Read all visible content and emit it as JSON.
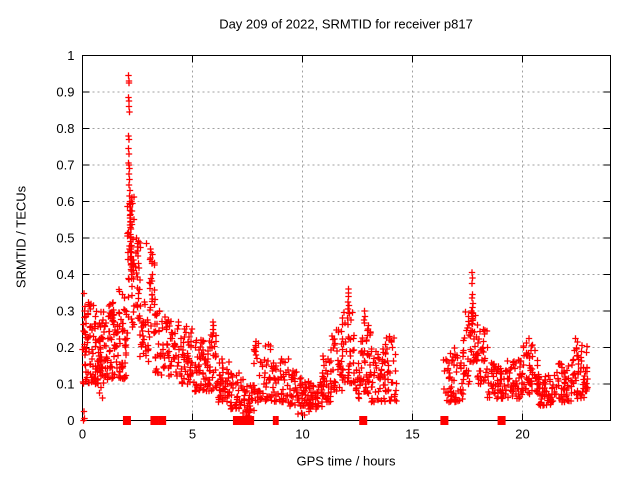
{
  "chart_data": {
    "type": "scatter",
    "title": "Day 209 of 2022, SRMTID for receiver p817",
    "xlabel": "GPS time / hours",
    "ylabel": "SRMTID / TECUs",
    "xlim": [
      0,
      24
    ],
    "ylim": [
      0,
      1
    ],
    "xticks": [
      0,
      5,
      10,
      15,
      20
    ],
    "xtick_labels": [
      "0",
      "5",
      "10",
      "15",
      "20"
    ],
    "yticks": [
      0,
      0.1,
      0.2,
      0.3,
      0.4,
      0.5,
      0.6,
      0.7,
      0.8,
      0.9,
      1
    ],
    "ytick_labels": [
      "0",
      "0.1",
      "0.2",
      "0.3",
      "0.4",
      "0.5",
      "0.6",
      "0.7",
      "0.8",
      "0.9",
      "1"
    ],
    "grid": "dashed",
    "grid_color": "#a0a0a0",
    "frame_color": "#000000",
    "legend": "none",
    "series": [
      {
        "name": "SRMTID",
        "marker": "plus",
        "color": "#ff0000"
      }
    ],
    "gap_intervals": [
      [
        14.35,
        16.4
      ]
    ],
    "seed": 42,
    "bins_format": [
      "x_start_h",
      "x_end_h",
      "y_min",
      "y_max",
      "count",
      "low_bias_exponent"
    ],
    "scatter_density_bins": [
      [
        0.0,
        0.5,
        0.1,
        0.35,
        60,
        1.3
      ],
      [
        0.5,
        1.1,
        0.1,
        0.3,
        70,
        1.4
      ],
      [
        1.1,
        1.6,
        0.11,
        0.33,
        55,
        1.4
      ],
      [
        1.6,
        2.05,
        0.11,
        0.36,
        50,
        1.2
      ],
      [
        2.05,
        2.35,
        0.25,
        0.62,
        45,
        1.0
      ],
      [
        2.3,
        2.65,
        0.28,
        0.5,
        30,
        1.1
      ],
      [
        2.6,
        3.0,
        0.16,
        0.35,
        30,
        1.2
      ],
      [
        3.0,
        3.3,
        0.22,
        0.46,
        25,
        1.0
      ],
      [
        3.3,
        3.8,
        0.12,
        0.3,
        35,
        1.3
      ],
      [
        3.8,
        4.4,
        0.12,
        0.28,
        45,
        1.3
      ],
      [
        4.4,
        5.0,
        0.1,
        0.26,
        50,
        1.4
      ],
      [
        5.0,
        5.6,
        0.08,
        0.22,
        45,
        1.4
      ],
      [
        5.6,
        6.1,
        0.08,
        0.24,
        40,
        1.5
      ],
      [
        6.1,
        6.7,
        0.05,
        0.17,
        45,
        1.3
      ],
      [
        6.7,
        7.4,
        0.03,
        0.13,
        45,
        1.3
      ],
      [
        7.4,
        7.8,
        0.02,
        0.1,
        30,
        1.2
      ],
      [
        7.8,
        8.6,
        0.05,
        0.22,
        55,
        1.5
      ],
      [
        8.6,
        9.4,
        0.05,
        0.17,
        50,
        1.4
      ],
      [
        9.4,
        10.2,
        0.04,
        0.14,
        55,
        1.4
      ],
      [
        10.2,
        10.9,
        0.03,
        0.11,
        50,
        1.3
      ],
      [
        10.9,
        11.3,
        0.05,
        0.18,
        35,
        1.4
      ],
      [
        11.3,
        11.8,
        0.08,
        0.25,
        40,
        1.4
      ],
      [
        11.8,
        12.4,
        0.1,
        0.3,
        45,
        1.3
      ],
      [
        12.4,
        12.65,
        0.06,
        0.16,
        18,
        1.3
      ],
      [
        12.65,
        13.1,
        0.07,
        0.27,
        45,
        1.4
      ],
      [
        13.1,
        13.6,
        0.05,
        0.2,
        35,
        1.4
      ],
      [
        13.6,
        14.35,
        0.05,
        0.23,
        45,
        1.4
      ],
      [
        16.4,
        17.3,
        0.05,
        0.2,
        60,
        1.4
      ],
      [
        17.3,
        17.6,
        0.1,
        0.3,
        25,
        1.2
      ],
      [
        17.6,
        17.95,
        0.15,
        0.3,
        28,
        1.1
      ],
      [
        17.95,
        18.4,
        0.1,
        0.25,
        35,
        1.3
      ],
      [
        18.4,
        19.2,
        0.06,
        0.16,
        55,
        1.3
      ],
      [
        19.2,
        20.0,
        0.06,
        0.17,
        55,
        1.3
      ],
      [
        20.0,
        20.7,
        0.07,
        0.22,
        55,
        1.4
      ],
      [
        20.7,
        21.5,
        0.04,
        0.13,
        55,
        1.3
      ],
      [
        21.5,
        22.3,
        0.05,
        0.16,
        55,
        1.3
      ],
      [
        22.3,
        23.0,
        0.06,
        0.21,
        55,
        1.4
      ]
    ],
    "notable_points": [
      [
        2.1,
        0.945
      ],
      [
        2.11,
        0.93
      ],
      [
        2.12,
        0.925
      ],
      [
        2.1,
        0.885
      ],
      [
        2.11,
        0.875
      ],
      [
        2.12,
        0.86
      ],
      [
        2.13,
        0.845
      ],
      [
        2.09,
        0.78
      ],
      [
        2.11,
        0.77
      ],
      [
        2.1,
        0.745
      ],
      [
        2.12,
        0.73
      ],
      [
        2.1,
        0.705
      ],
      [
        2.11,
        0.7
      ],
      [
        2.13,
        0.69
      ],
      [
        2.12,
        0.675
      ],
      [
        2.14,
        0.66
      ],
      [
        2.12,
        0.645
      ],
      [
        2.15,
        0.63
      ],
      [
        2.13,
        0.615
      ],
      [
        2.16,
        0.6
      ],
      [
        2.14,
        0.595
      ],
      [
        2.17,
        0.585
      ],
      [
        2.15,
        0.575
      ],
      [
        2.18,
        0.565
      ],
      [
        2.16,
        0.555
      ],
      [
        2.19,
        0.545
      ],
      [
        2.17,
        0.535
      ],
      [
        2.2,
        0.525
      ],
      [
        2.18,
        0.51
      ],
      [
        2.21,
        0.5
      ],
      [
        2.19,
        0.49
      ],
      [
        2.22,
        0.48
      ],
      [
        2.2,
        0.47
      ],
      [
        2.23,
        0.46
      ],
      [
        2.21,
        0.45
      ],
      [
        2.24,
        0.44
      ],
      [
        2.22,
        0.43
      ],
      [
        2.25,
        0.42
      ],
      [
        2.23,
        0.41
      ],
      [
        2.26,
        0.4
      ],
      [
        2.45,
        0.5
      ],
      [
        2.55,
        0.49
      ],
      [
        2.5,
        0.485
      ],
      [
        2.9,
        0.485
      ],
      [
        3.08,
        0.47
      ],
      [
        3.12,
        0.46
      ],
      [
        3.1,
        0.445
      ],
      [
        3.15,
        0.43
      ],
      [
        5.93,
        0.27
      ],
      [
        5.95,
        0.26
      ],
      [
        5.94,
        0.25
      ],
      [
        5.96,
        0.24
      ],
      [
        5.92,
        0.23
      ],
      [
        12.08,
        0.36
      ],
      [
        12.1,
        0.35
      ],
      [
        12.09,
        0.34
      ],
      [
        12.07,
        0.325
      ],
      [
        12.11,
        0.315
      ],
      [
        12.06,
        0.305
      ],
      [
        12.12,
        0.295
      ],
      [
        12.82,
        0.3
      ],
      [
        12.85,
        0.285
      ],
      [
        12.8,
        0.275
      ],
      [
        13.95,
        0.23
      ],
      [
        13.97,
        0.22
      ],
      [
        14.05,
        0.215
      ],
      [
        14.08,
        0.2
      ],
      [
        17.7,
        0.405
      ],
      [
        17.72,
        0.39
      ],
      [
        17.71,
        0.375
      ],
      [
        17.73,
        0.345
      ],
      [
        17.7,
        0.335
      ],
      [
        17.74,
        0.32
      ],
      [
        17.72,
        0.31
      ],
      [
        17.69,
        0.3
      ],
      [
        17.75,
        0.295
      ],
      [
        17.71,
        0.285
      ],
      [
        17.76,
        0.275
      ],
      [
        17.73,
        0.265
      ],
      [
        20.3,
        0.225
      ],
      [
        22.42,
        0.225
      ],
      [
        22.5,
        0.215
      ],
      [
        0.78,
        0.075
      ],
      [
        0.85,
        0.09
      ],
      [
        0.92,
        0.062
      ],
      [
        0.07,
        0.025
      ],
      [
        0.1,
        0.005
      ],
      [
        0.05,
        0.0
      ],
      [
        7.3,
        0.02
      ],
      [
        7.45,
        0.015
      ],
      [
        7.55,
        0.012
      ],
      [
        9.8,
        0.018
      ],
      [
        9.95,
        0.02
      ],
      [
        10.1,
        0.015
      ],
      [
        10.3,
        0.025
      ]
    ],
    "baseline_marker_squares": [
      [
        2.02,
        8
      ],
      [
        3.27,
        8
      ],
      [
        3.62,
        8
      ],
      [
        7.02,
        8
      ],
      [
        7.22,
        8
      ],
      [
        7.42,
        8
      ],
      [
        7.62,
        8
      ],
      [
        8.72,
        3
      ],
      [
        8.85,
        3
      ],
      [
        12.76,
        8
      ],
      [
        16.45,
        8
      ],
      [
        19.05,
        8
      ]
    ]
  }
}
